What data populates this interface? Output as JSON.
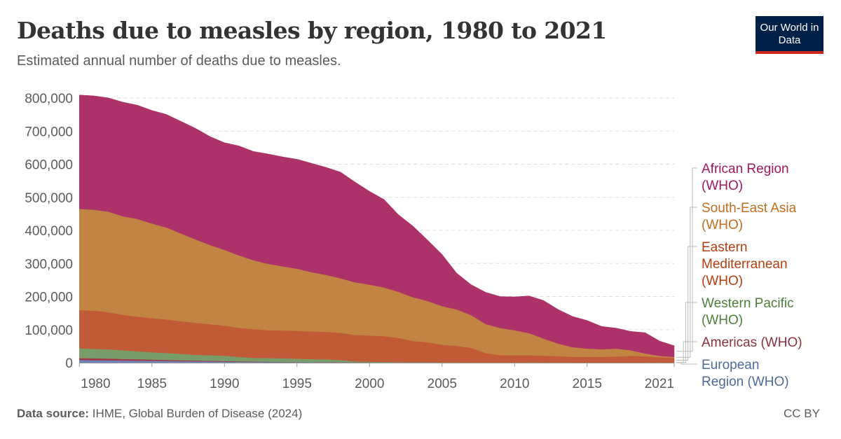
{
  "header": {
    "title": "Deaths due to measles by region, 1980 to 2021",
    "subtitle": "Estimated annual number of deaths due to measles.",
    "logo": "Our World in Data"
  },
  "footer": {
    "source_label": "Data source:",
    "source_text": "IHME, Global Burden of Disease (2024)",
    "license": "CC BY"
  },
  "chart_data": {
    "type": "area",
    "stacked": true,
    "title": "Deaths due to measles by region, 1980 to 2021",
    "subtitle": "Estimated annual number of deaths due to measles.",
    "xlabel": "",
    "ylabel": "",
    "xlim": [
      1980,
      2021
    ],
    "ylim": [
      0,
      800000
    ],
    "grid": "horizontal dashed",
    "legend": "right",
    "x_ticks": [
      "1980",
      "1985",
      "1990",
      "1995",
      "2000",
      "2005",
      "2010",
      "2015",
      "2021"
    ],
    "y_ticks": [
      "0",
      "100,000",
      "200,000",
      "300,000",
      "400,000",
      "500,000",
      "600,000",
      "700,000",
      "800,000"
    ],
    "x": [
      1980,
      1981,
      1982,
      1983,
      1984,
      1985,
      1986,
      1987,
      1988,
      1989,
      1990,
      1991,
      1992,
      1993,
      1994,
      1995,
      1996,
      1997,
      1998,
      1999,
      2000,
      2001,
      2002,
      2003,
      2004,
      2005,
      2006,
      2007,
      2008,
      2009,
      2010,
      2011,
      2012,
      2013,
      2014,
      2015,
      2016,
      2017,
      2018,
      2019,
      2020,
      2021
    ],
    "series": [
      {
        "name": "European Region (WHO)",
        "color": "#6d84b6",
        "label_color": "#4c6a9c",
        "values": [
          8000,
          7500,
          7000,
          6500,
          6000,
          5500,
          5000,
          4500,
          4000,
          3500,
          3000,
          2700,
          2400,
          2100,
          1800,
          1600,
          1400,
          1200,
          1000,
          900,
          800,
          700,
          600,
          500,
          500,
          400,
          400,
          300,
          300,
          300,
          300,
          300,
          300,
          200,
          200,
          200,
          200,
          200,
          300,
          300,
          200,
          200
        ]
      },
      {
        "name": "Americas (WHO)",
        "color": "#a13a4c",
        "label_color": "#8c2f3f",
        "values": [
          6000,
          6000,
          5500,
          5000,
          4500,
          4000,
          3500,
          3000,
          2600,
          2200,
          2000,
          1600,
          1200,
          800,
          500,
          400,
          300,
          200,
          100,
          100,
          100,
          100,
          100,
          100,
          100,
          100,
          100,
          100,
          100,
          100,
          100,
          100,
          100,
          100,
          100,
          100,
          100,
          100,
          100,
          100,
          100,
          100
        ]
      },
      {
        "name": "Western Pacific (WHO)",
        "color": "#789c6a",
        "label_color": "#4d7e3a",
        "values": [
          30000,
          28000,
          28000,
          26000,
          24000,
          22000,
          21000,
          19000,
          17000,
          17000,
          16000,
          13000,
          11000,
          11000,
          11000,
          10000,
          9000,
          9000,
          7000,
          3000,
          2000,
          1500,
          1200,
          1000,
          900,
          600,
          500,
          500,
          500,
          500,
          500,
          600,
          500,
          500,
          400,
          300,
          300,
          300,
          300,
          300,
          200,
          200
        ]
      },
      {
        "name": "Eastern Mediterranean (WHO)",
        "color": "#c15b37",
        "label_color": "#b93c0e",
        "values": [
          115000,
          116000,
          112000,
          107000,
          105000,
          103000,
          101000,
          99000,
          97000,
          94000,
          91000,
          88000,
          87000,
          84000,
          84000,
          84000,
          84000,
          83000,
          82000,
          80000,
          79000,
          78000,
          73000,
          64000,
          60000,
          53000,
          50000,
          44000,
          28000,
          22000,
          22000,
          22000,
          20000,
          19000,
          17000,
          17000,
          17000,
          18000,
          20000,
          19000,
          16000,
          14000
        ]
      },
      {
        "name": "South-East Asia (WHO)",
        "color": "#c18443",
        "label_color": "#c06e1e",
        "values": [
          306000,
          305000,
          304000,
          298000,
          295000,
          286000,
          278000,
          265000,
          252000,
          239000,
          229000,
          219000,
          208000,
          201000,
          194000,
          188000,
          179000,
          172000,
          165000,
          159000,
          154000,
          147000,
          139000,
          132000,
          125000,
          117000,
          110000,
          99000,
          88000,
          82000,
          75000,
          66000,
          52000,
          38000,
          29000,
          25000,
          23000,
          24000,
          17000,
          8000,
          4000,
          3000
        ]
      },
      {
        "name": "African Region (WHO)",
        "color": "#ad3269",
        "label_color": "#a2175e",
        "values": [
          344000,
          344000,
          344000,
          345000,
          344000,
          342000,
          342000,
          339000,
          336000,
          328000,
          324000,
          331000,
          329000,
          332000,
          331000,
          331000,
          329000,
          325000,
          321000,
          303000,
          282000,
          266000,
          233000,
          215000,
          184000,
          156000,
          110000,
          92000,
          96000,
          95000,
          101000,
          113000,
          115000,
          103000,
          93000,
          85000,
          69000,
          62000,
          57000,
          63000,
          45000,
          34000
        ]
      }
    ]
  }
}
